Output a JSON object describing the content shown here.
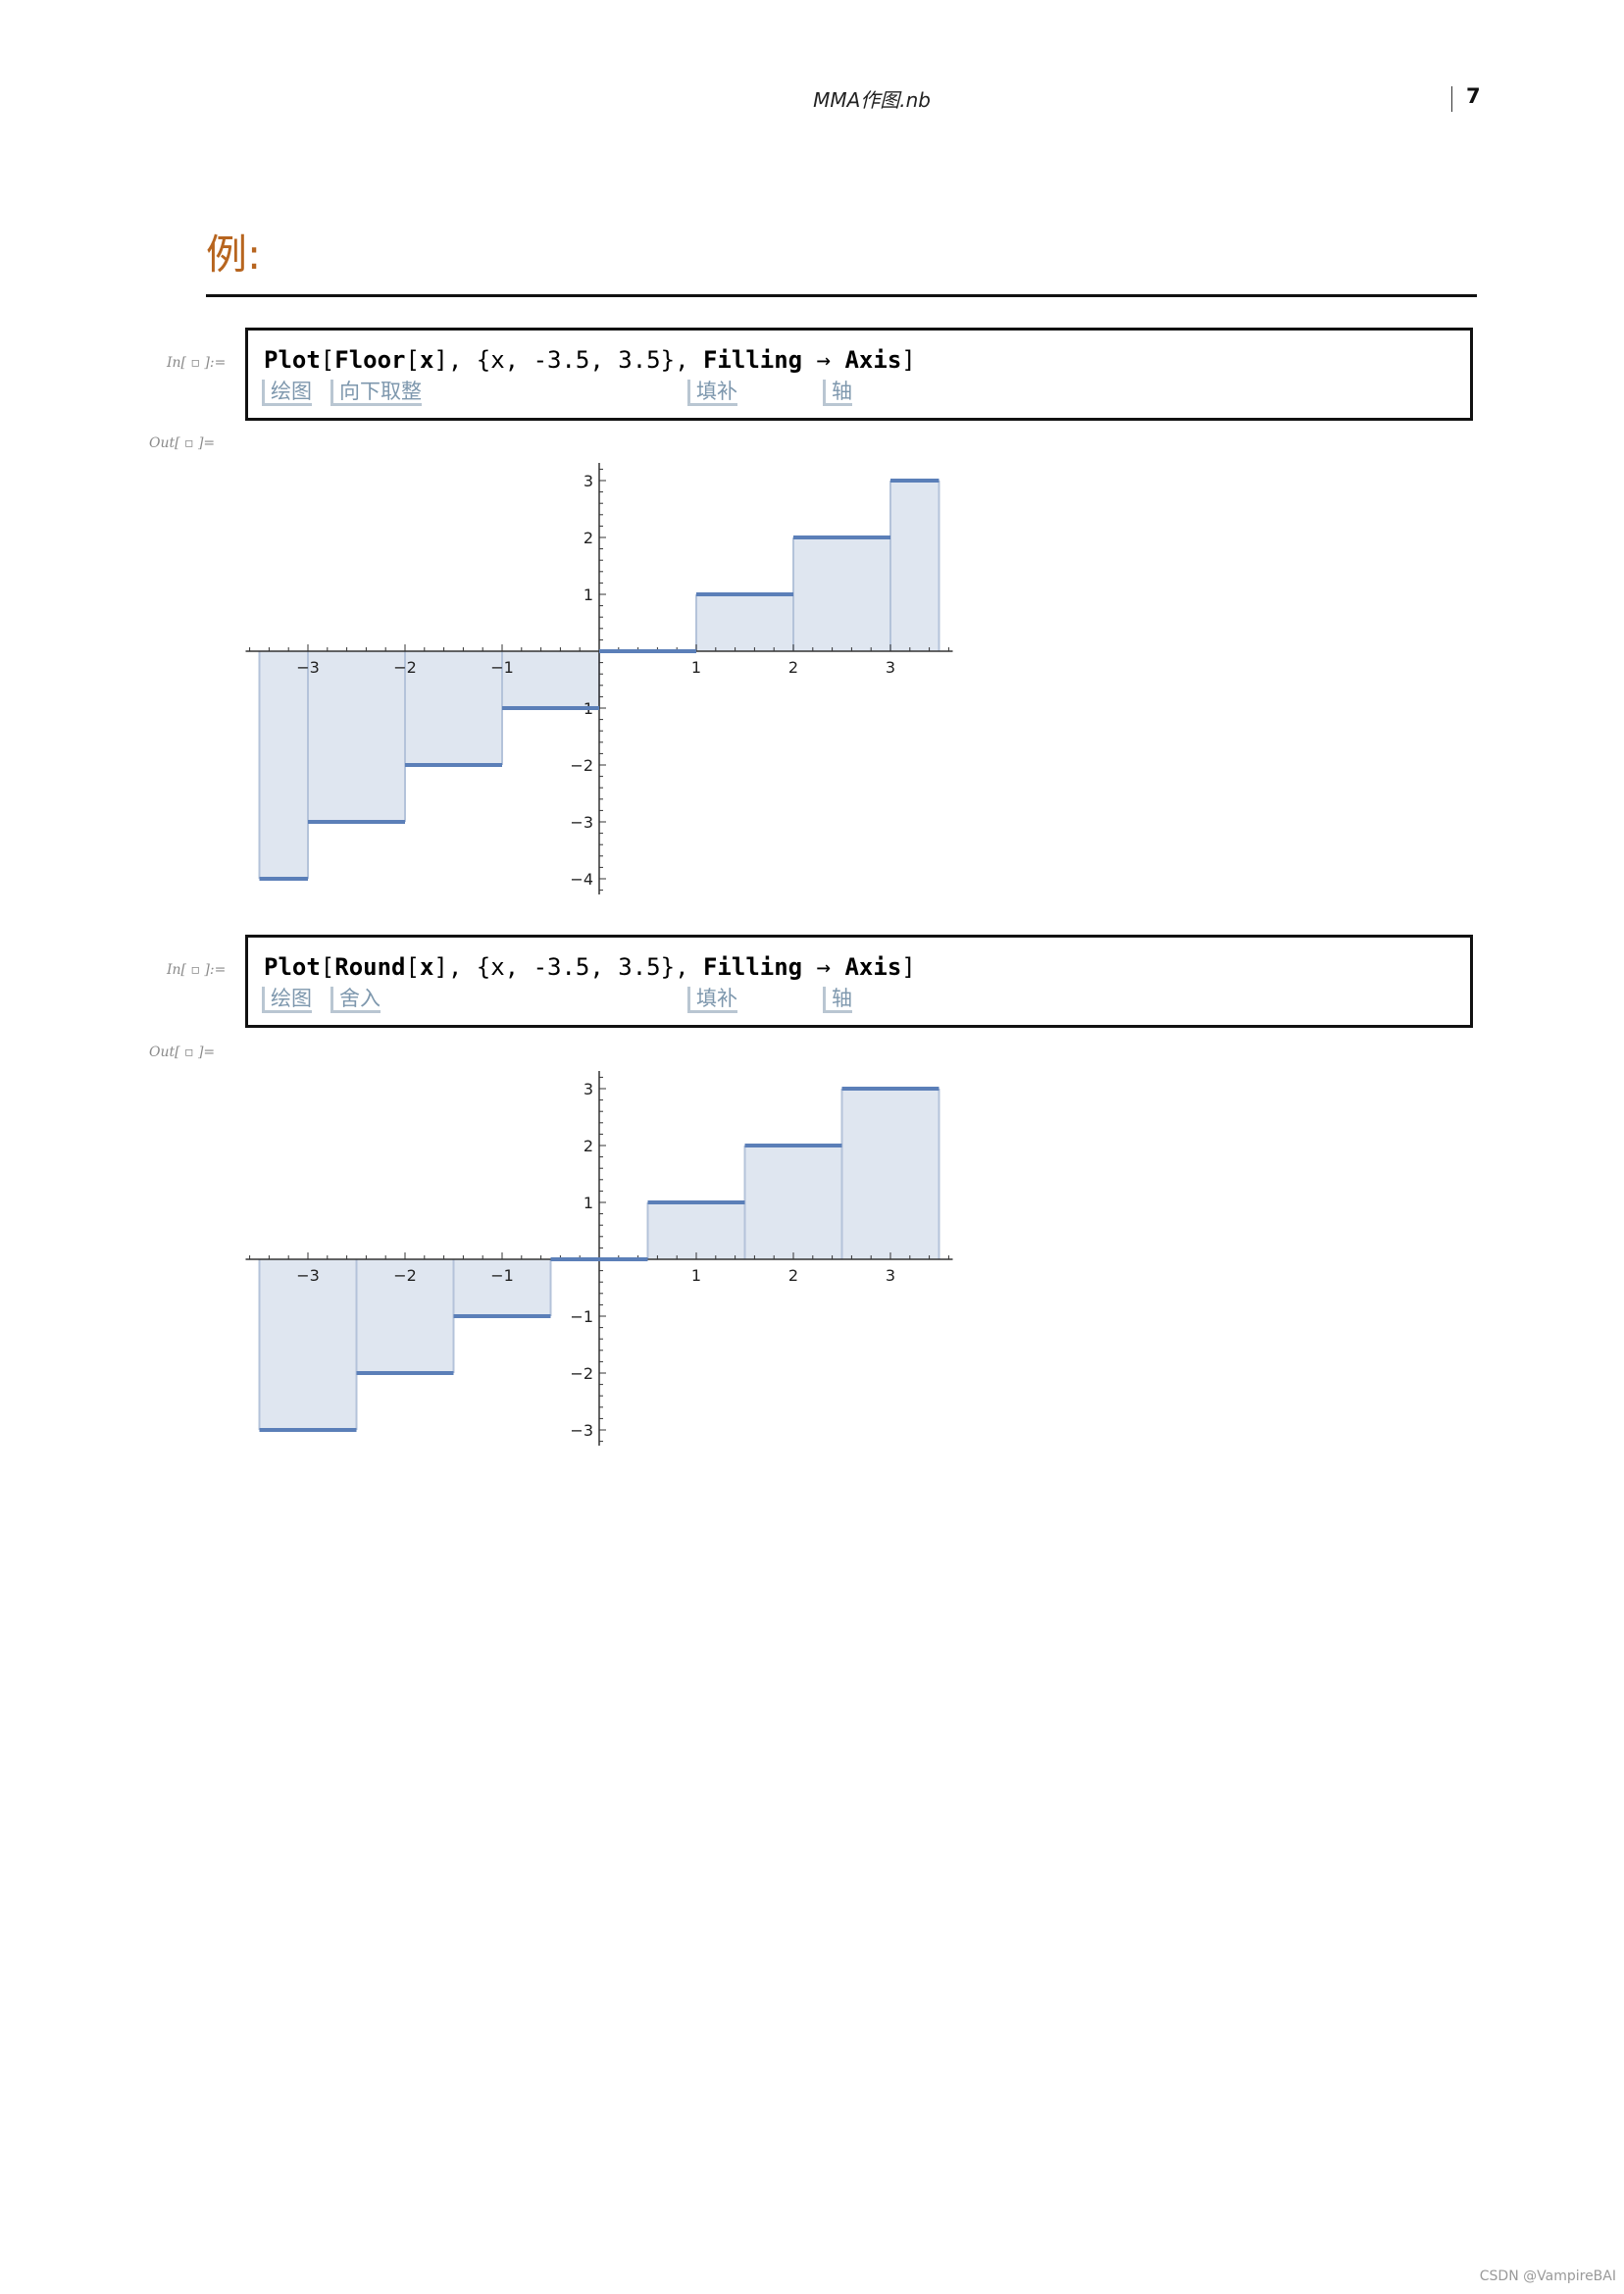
{
  "header": {
    "title": "MMA作图.nb",
    "page": "7"
  },
  "section": {
    "title": "例:"
  },
  "cells": [
    {
      "in_label": "In[ ▫ ]:=",
      "out_label": "Out[ ▫ ]=",
      "code": {
        "fn": "Plot",
        "func": "Floor",
        "arg": "x",
        "range": "{x, -3.5, 3.5}",
        "opt": "Filling",
        "arrow": "→",
        "val": "Axis"
      },
      "hints": [
        "绘图",
        "向下取整",
        "填补",
        "轴"
      ]
    },
    {
      "in_label": "In[ ▫ ]:=",
      "out_label": "Out[ ▫ ]=",
      "code": {
        "fn": "Plot",
        "func": "Round",
        "arg": "x",
        "range": "{x, -3.5, 3.5}",
        "opt": "Filling",
        "arrow": "→",
        "val": "Axis"
      },
      "hints": [
        "绘图",
        "舍入",
        "填补",
        "轴"
      ]
    }
  ],
  "chart_data": [
    {
      "type": "area",
      "function": "Floor[x]",
      "xlim": [
        -3.5,
        3.5
      ],
      "ylim": [
        -4,
        3
      ],
      "x_ticks": [
        "-3",
        "-2",
        "-1",
        "1",
        "2",
        "3"
      ],
      "y_ticks": [
        "3",
        "2",
        "1",
        "-1",
        "-2",
        "-3",
        "-4"
      ],
      "segments": [
        {
          "x0": -3.5,
          "x1": -3,
          "y": -4
        },
        {
          "x0": -3,
          "x1": -2,
          "y": -3
        },
        {
          "x0": -2,
          "x1": -1,
          "y": -2
        },
        {
          "x0": -1,
          "x1": 0,
          "y": -1
        },
        {
          "x0": 0,
          "x1": 1,
          "y": 0
        },
        {
          "x0": 1,
          "x1": 2,
          "y": 1
        },
        {
          "x0": 2,
          "x1": 3,
          "y": 2
        },
        {
          "x0": 3,
          "x1": 3.5,
          "y": 3
        }
      ],
      "line_color": "#5b7fb8",
      "fill_color": "#dfe6f0"
    },
    {
      "type": "area",
      "function": "Round[x]",
      "xlim": [
        -3.5,
        3.5
      ],
      "ylim": [
        -3,
        3
      ],
      "x_ticks": [
        "-3",
        "-2",
        "-1",
        "1",
        "2",
        "3"
      ],
      "y_ticks": [
        "3",
        "2",
        "1",
        "-1",
        "-2",
        "-3"
      ],
      "segments": [
        {
          "x0": -3.5,
          "x1": -2.5,
          "y": -3
        },
        {
          "x0": -2.5,
          "x1": -1.5,
          "y": -2
        },
        {
          "x0": -1.5,
          "x1": -0.5,
          "y": -1
        },
        {
          "x0": -0.5,
          "x1": 0.5,
          "y": 0
        },
        {
          "x0": 0.5,
          "x1": 1.5,
          "y": 1
        },
        {
          "x0": 1.5,
          "x1": 2.5,
          "y": 2
        },
        {
          "x0": 2.5,
          "x1": 3.5,
          "y": 3
        }
      ],
      "line_color": "#5b7fb8",
      "fill_color": "#dfe6f0"
    }
  ],
  "watermark": "CSDN @VampireBAI"
}
